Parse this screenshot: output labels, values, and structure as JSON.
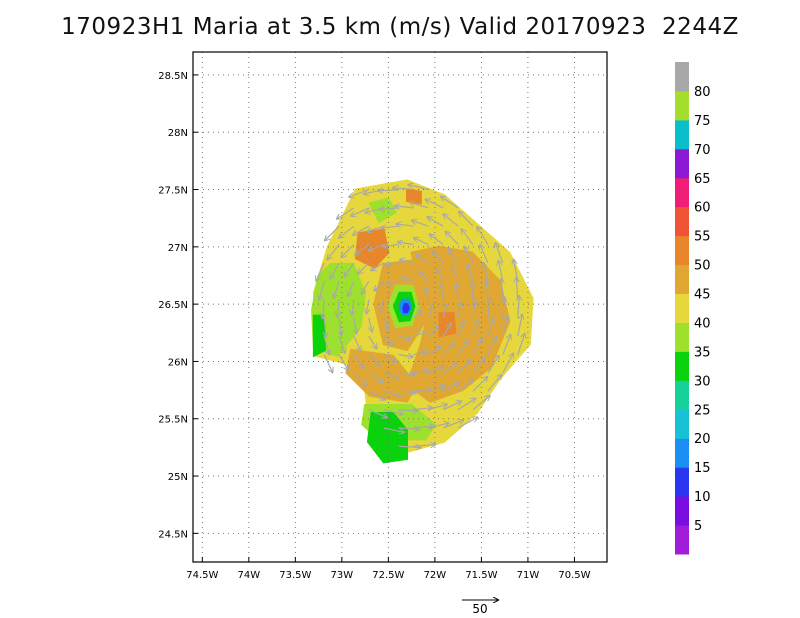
{
  "title": "170923H1 Maria at 3.5 km (m/s) Valid 20170923  2244Z",
  "chart_data": {
    "type": "heatmap",
    "title": "170923H1 Maria at 3.5 km (m/s) Valid 20170923  2244Z",
    "xlabel": "",
    "ylabel": "",
    "xlim": [
      -74.6,
      -70.15
    ],
    "ylim": [
      24.25,
      28.7
    ],
    "grid": true,
    "x_ticks": [
      {
        "value": -74.5,
        "label": "74.5W"
      },
      {
        "value": -74.0,
        "label": "74W"
      },
      {
        "value": -73.5,
        "label": "73.5W"
      },
      {
        "value": -73.0,
        "label": "73W"
      },
      {
        "value": -72.5,
        "label": "72.5W"
      },
      {
        "value": -72.0,
        "label": "72W"
      },
      {
        "value": -71.5,
        "label": "71.5W"
      },
      {
        "value": -71.0,
        "label": "71W"
      },
      {
        "value": -70.5,
        "label": "70.5W"
      }
    ],
    "y_ticks": [
      {
        "value": 24.5,
        "label": "24.5N"
      },
      {
        "value": 25.0,
        "label": "25N"
      },
      {
        "value": 25.5,
        "label": "25.5N"
      },
      {
        "value": 26.0,
        "label": "26N"
      },
      {
        "value": 26.5,
        "label": "26.5N"
      },
      {
        "value": 27.0,
        "label": "27N"
      },
      {
        "value": 27.5,
        "label": "27.5N"
      },
      {
        "value": 28.0,
        "label": "28N"
      },
      {
        "value": 28.5,
        "label": "28.5N"
      }
    ],
    "storm_center": {
      "lon": -72.32,
      "lat": 26.47
    },
    "colorbar": {
      "levels": [
        "5",
        "10",
        "15",
        "20",
        "25",
        "30",
        "35",
        "40",
        "45",
        "50",
        "55",
        "60",
        "65",
        "70",
        "75",
        "80"
      ],
      "colors": [
        "#a01cd8",
        "#7a0ee0",
        "#2a36f0",
        "#1c90f2",
        "#16c2d4",
        "#14d29a",
        "#0ad20c",
        "#9ee02e",
        "#e6d83c",
        "#e0a832",
        "#e8862c",
        "#f05438",
        "#f01e78",
        "#8c1ad4",
        "#0abeca",
        "#a6de2e",
        "#a8a8a8"
      ]
    },
    "regions": [
      {
        "name": "wind-field-45",
        "value": 45,
        "color": "#e6d83c",
        "polygon": [
          [
            -72.85,
            27.5
          ],
          [
            -72.3,
            27.58
          ],
          [
            -71.9,
            27.45
          ],
          [
            -71.55,
            27.2
          ],
          [
            -71.2,
            26.95
          ],
          [
            -70.95,
            26.55
          ],
          [
            -70.98,
            26.15
          ],
          [
            -71.3,
            25.85
          ],
          [
            -71.55,
            25.55
          ],
          [
            -71.9,
            25.3
          ],
          [
            -72.35,
            25.2
          ],
          [
            -72.7,
            25.42
          ],
          [
            -72.75,
            25.75
          ],
          [
            -72.95,
            25.98
          ],
          [
            -73.28,
            26.05
          ],
          [
            -73.3,
            26.6
          ],
          [
            -73.15,
            27.0
          ],
          [
            -73.0,
            27.25
          ]
        ]
      },
      {
        "name": "wind-field-35-west",
        "value": 35,
        "color": "#9ee02e",
        "polygon": [
          [
            -73.12,
            26.85
          ],
          [
            -72.88,
            26.85
          ],
          [
            -72.75,
            26.6
          ],
          [
            -72.8,
            26.3
          ],
          [
            -73.05,
            26.05
          ],
          [
            -73.3,
            26.12
          ],
          [
            -73.32,
            26.45
          ],
          [
            -73.25,
            26.75
          ]
        ]
      },
      {
        "name": "wind-field-35-north",
        "value": 35,
        "color": "#9ee02e",
        "polygon": [
          [
            -72.7,
            27.38
          ],
          [
            -72.5,
            27.42
          ],
          [
            -72.42,
            27.3
          ],
          [
            -72.6,
            27.22
          ]
        ]
      },
      {
        "name": "wind-field-35-south",
        "value": 35,
        "color": "#9ee02e",
        "polygon": [
          [
            -72.75,
            25.62
          ],
          [
            -72.25,
            25.62
          ],
          [
            -72.0,
            25.45
          ],
          [
            -72.1,
            25.32
          ],
          [
            -72.6,
            25.32
          ],
          [
            -72.78,
            25.45
          ]
        ]
      },
      {
        "name": "wind-field-30-south",
        "value": 30,
        "color": "#0ad20c",
        "polygon": [
          [
            -72.68,
            25.55
          ],
          [
            -72.45,
            25.55
          ],
          [
            -72.3,
            25.4
          ],
          [
            -72.3,
            25.15
          ],
          [
            -72.55,
            25.12
          ],
          [
            -72.72,
            25.3
          ]
        ]
      },
      {
        "name": "wind-field-30-west",
        "value": 30,
        "color": "#0ad20c",
        "polygon": [
          [
            -73.3,
            26.4
          ],
          [
            -73.2,
            26.4
          ],
          [
            -73.18,
            26.1
          ],
          [
            -73.3,
            26.05
          ]
        ]
      },
      {
        "name": "wind-field-50-east",
        "value": 50,
        "color": "#e0a832",
        "polygon": [
          [
            -72.25,
            26.95
          ],
          [
            -71.95,
            27.0
          ],
          [
            -71.6,
            26.95
          ],
          [
            -71.3,
            26.7
          ],
          [
            -71.2,
            26.35
          ],
          [
            -71.4,
            25.95
          ],
          [
            -71.7,
            25.75
          ],
          [
            -72.05,
            25.65
          ],
          [
            -72.3,
            25.8
          ],
          [
            -72.15,
            26.15
          ],
          [
            -72.05,
            26.5
          ],
          [
            -72.2,
            26.75
          ]
        ]
      },
      {
        "name": "wind-field-50-inner",
        "value": 50,
        "color": "#e0a832",
        "polygon": [
          [
            -72.55,
            26.85
          ],
          [
            -72.25,
            26.88
          ],
          [
            -72.05,
            26.7
          ],
          [
            -72.1,
            26.35
          ],
          [
            -72.3,
            26.1
          ],
          [
            -72.55,
            26.15
          ],
          [
            -72.65,
            26.5
          ]
        ]
      },
      {
        "name": "wind-field-50-south",
        "value": 50,
        "color": "#e0a832",
        "polygon": [
          [
            -72.9,
            26.1
          ],
          [
            -72.45,
            26.05
          ],
          [
            -72.2,
            25.8
          ],
          [
            -72.3,
            25.65
          ],
          [
            -72.7,
            25.7
          ],
          [
            -72.95,
            25.9
          ]
        ]
      },
      {
        "name": "wind-field-55-north",
        "value": 55,
        "color": "#e8862c",
        "polygon": [
          [
            -72.82,
            27.12
          ],
          [
            -72.55,
            27.15
          ],
          [
            -72.5,
            26.95
          ],
          [
            -72.65,
            26.82
          ],
          [
            -72.85,
            26.9
          ]
        ]
      },
      {
        "name": "wind-field-55-east",
        "value": 55,
        "color": "#e8862c",
        "polygon": [
          [
            -71.95,
            26.42
          ],
          [
            -71.8,
            26.42
          ],
          [
            -71.78,
            26.25
          ],
          [
            -71.95,
            26.22
          ]
        ]
      },
      {
        "name": "wind-field-55-ne",
        "value": 55,
        "color": "#e8862c",
        "polygon": [
          [
            -72.3,
            27.5
          ],
          [
            -72.15,
            27.48
          ],
          [
            -72.15,
            27.38
          ],
          [
            -72.3,
            27.4
          ]
        ]
      },
      {
        "name": "eye-ring-35",
        "value": 35,
        "color": "#9ee02e",
        "polygon": [
          [
            -72.42,
            26.66
          ],
          [
            -72.24,
            26.66
          ],
          [
            -72.18,
            26.48
          ],
          [
            -72.25,
            26.32
          ],
          [
            -72.42,
            26.3
          ],
          [
            -72.5,
            26.48
          ]
        ]
      },
      {
        "name": "eye-ring-30",
        "value": 30,
        "color": "#0ad20c",
        "polygon": [
          [
            -72.38,
            26.6
          ],
          [
            -72.26,
            26.6
          ],
          [
            -72.22,
            26.48
          ],
          [
            -72.27,
            26.36
          ],
          [
            -72.38,
            26.35
          ],
          [
            -72.44,
            26.48
          ]
        ]
      },
      {
        "name": "eye-ring-15",
        "value": 15,
        "color": "#1c90f2",
        "polygon": [
          [
            -72.35,
            26.54
          ],
          [
            -72.28,
            26.54
          ],
          [
            -72.26,
            26.47
          ],
          [
            -72.29,
            26.41
          ],
          [
            -72.35,
            26.41
          ],
          [
            -72.38,
            26.47
          ]
        ]
      },
      {
        "name": "eye-core-10",
        "value": 10,
        "color": "#2a36f0",
        "polygon": [
          [
            -72.33,
            26.5
          ],
          [
            -72.29,
            26.5
          ],
          [
            -72.28,
            26.46
          ],
          [
            -72.3,
            26.43
          ],
          [
            -72.33,
            26.43
          ],
          [
            -72.34,
            26.46
          ]
        ]
      }
    ],
    "vectors": {
      "color": "#a8a8a8",
      "reference": {
        "label": "50",
        "speed": 50
      }
    }
  }
}
